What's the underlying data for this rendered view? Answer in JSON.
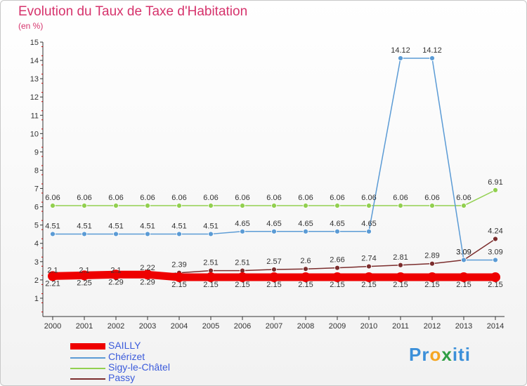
{
  "chart_data": {
    "type": "line",
    "title": "Evolution du Taux de Taxe d'Habitation",
    "ylabel": "(en %)",
    "xlabel": "",
    "categories": [
      "2000",
      "2001",
      "2002",
      "2003",
      "2004",
      "2005",
      "2006",
      "2007",
      "2008",
      "2009",
      "2010",
      "2011",
      "2012",
      "2013",
      "2014"
    ],
    "ylim": [
      0,
      15
    ],
    "yticks": [
      "1",
      "2",
      "3",
      "4",
      "5",
      "6",
      "7",
      "8",
      "9",
      "10",
      "11",
      "12",
      "13",
      "14",
      "15"
    ],
    "series": [
      {
        "name": "SAILLY",
        "color": "#ee0000",
        "values": [
          2.21,
          2.25,
          2.29,
          2.29,
          2.15,
          2.15,
          2.15,
          2.15,
          2.15,
          2.15,
          2.15,
          2.15,
          2.15,
          2.15,
          2.15
        ],
        "labels": [
          "2.21",
          "2.25",
          "2.29",
          "2.29",
          "2.15",
          "2.15",
          "2.15",
          "2.15",
          "2.15",
          "2.15",
          "2.15",
          "2.15",
          "2.15",
          "2.15",
          "2.15"
        ]
      },
      {
        "name": "Chérizet",
        "color": "#5b9bd5",
        "values": [
          4.51,
          4.51,
          4.51,
          4.51,
          4.51,
          4.51,
          4.65,
          4.65,
          4.65,
          4.65,
          4.65,
          14.12,
          14.12,
          3.09,
          3.09
        ],
        "labels": [
          "4.51",
          "4.51",
          "4.51",
          "4.51",
          "4.51",
          "4.51",
          "4.65",
          "4.65",
          "4.65",
          "4.65",
          "4.65",
          "14.12",
          "14.12",
          "3.09",
          "3.09"
        ]
      },
      {
        "name": "Sigy-le-Châtel",
        "color": "#92d050",
        "values": [
          6.06,
          6.06,
          6.06,
          6.06,
          6.06,
          6.06,
          6.06,
          6.06,
          6.06,
          6.06,
          6.06,
          6.06,
          6.06,
          6.06,
          6.91
        ],
        "labels": [
          "6.06",
          "6.06",
          "6.06",
          "6.06",
          "6.06",
          "6.06",
          "6.06",
          "6.06",
          "6.06",
          "6.06",
          "6.06",
          "6.06",
          "6.06",
          "6.06",
          "6.91"
        ]
      },
      {
        "name": "Passy",
        "color": "#7b2d2d",
        "values": [
          2.1,
          2.1,
          2.1,
          2.22,
          2.39,
          2.51,
          2.51,
          2.57,
          2.6,
          2.66,
          2.74,
          2.81,
          2.89,
          3.09,
          4.24
        ],
        "labels": [
          "2.1",
          "2.1",
          "2.1",
          "2.22",
          "2.39",
          "2.51",
          "2.51",
          "2.57",
          "2.6",
          "2.66",
          "2.74",
          "2.81",
          "2.89",
          "3.09",
          "4.24"
        ]
      }
    ],
    "legend": "bottom-left",
    "grid": false
  },
  "logo": {
    "text_p": "Pr",
    "text_o": "o",
    "text_x": "x",
    "text_i": "iti"
  }
}
